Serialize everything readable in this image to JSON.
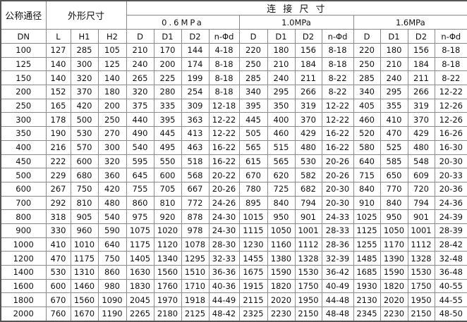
{
  "header": {
    "nominal_diameter": "公称通径",
    "overall_dimensions": "外形尺寸",
    "connection_dimensions": "连 接 尺 寸",
    "pressure_classes": [
      "0.6MPa",
      "1.0MPa",
      "1.6MPa"
    ],
    "columns": [
      "DN",
      "L",
      "H1",
      "H2",
      "D",
      "D1",
      "D2",
      "n-Φd",
      "D",
      "D1",
      "D2",
      "n-Φd",
      "D",
      "D1",
      "D2",
      "n-Φd"
    ]
  },
  "rows": [
    [
      "100",
      "127",
      "285",
      "105",
      "210",
      "170",
      "144",
      "4-18",
      "220",
      "180",
      "156",
      "8-18",
      "220",
      "180",
      "156",
      "8-18"
    ],
    [
      "125",
      "140",
      "300",
      "125",
      "240",
      "200",
      "174",
      "8-18",
      "250",
      "210",
      "184",
      "8-18",
      "250",
      "210",
      "184",
      "8-18"
    ],
    [
      "150",
      "140",
      "320",
      "140",
      "265",
      "225",
      "199",
      "8-18",
      "285",
      "240",
      "211",
      "8-22",
      "285",
      "240",
      "211",
      "8-22"
    ],
    [
      "200",
      "152",
      "370",
      "180",
      "320",
      "280",
      "254",
      "8-18",
      "340",
      "295",
      "266",
      "8-22",
      "340",
      "295",
      "266",
      "12-22"
    ],
    [
      "250",
      "165",
      "420",
      "200",
      "375",
      "335",
      "309",
      "12-18",
      "395",
      "350",
      "319",
      "12-22",
      "405",
      "355",
      "319",
      "12-26"
    ],
    [
      "300",
      "178",
      "500",
      "250",
      "440",
      "395",
      "363",
      "12-22",
      "445",
      "400",
      "370",
      "12-22",
      "460",
      "410",
      "370",
      "12-26"
    ],
    [
      "350",
      "190",
      "530",
      "270",
      "490",
      "445",
      "413",
      "12-22",
      "505",
      "460",
      "429",
      "16-22",
      "520",
      "470",
      "429",
      "16-26"
    ],
    [
      "400",
      "216",
      "570",
      "300",
      "540",
      "495",
      "463",
      "16-22",
      "565",
      "515",
      "480",
      "16-22",
      "580",
      "525",
      "480",
      "16-30"
    ],
    [
      "450",
      "222",
      "600",
      "320",
      "595",
      "550",
      "518",
      "16-22",
      "615",
      "565",
      "530",
      "20-26",
      "640",
      "585",
      "548",
      "20-30"
    ],
    [
      "500",
      "229",
      "680",
      "360",
      "645",
      "600",
      "568",
      "20-22",
      "670",
      "620",
      "582",
      "20-26",
      "715",
      "650",
      "609",
      "20-33"
    ],
    [
      "600",
      "267",
      "750",
      "420",
      "755",
      "705",
      "667",
      "20-26",
      "780",
      "725",
      "682",
      "20-30",
      "840",
      "770",
      "720",
      "20-36"
    ],
    [
      "700",
      "292",
      "810",
      "480",
      "860",
      "810",
      "772",
      "24-26",
      "895",
      "840",
      "794",
      "20-30",
      "910",
      "840",
      "794",
      "24-36"
    ],
    [
      "800",
      "318",
      "905",
      "540",
      "975",
      "920",
      "878",
      "24-30",
      "1015",
      "950",
      "901",
      "24-33",
      "1025",
      "950",
      "901",
      "24-39"
    ],
    [
      "900",
      "330",
      "960",
      "590",
      "1075",
      "1020",
      "978",
      "24-30",
      "1115",
      "1050",
      "1001",
      "28-33",
      "1125",
      "1050",
      "1001",
      "28-39"
    ],
    [
      "1000",
      "410",
      "1010",
      "640",
      "1175",
      "1120",
      "1078",
      "28-30",
      "1230",
      "1160",
      "1112",
      "28-36",
      "1255",
      "1170",
      "1112",
      "28-42"
    ],
    [
      "1200",
      "470",
      "1175",
      "750",
      "1405",
      "1340",
      "1295",
      "32-33",
      "1455",
      "1380",
      "1328",
      "32-39",
      "1485",
      "1390",
      "1328",
      "32-48"
    ],
    [
      "1400",
      "530",
      "1310",
      "860",
      "1630",
      "1560",
      "1510",
      "36-36",
      "1675",
      "1590",
      "1530",
      "36-42",
      "1685",
      "1590",
      "1530",
      "36-48"
    ],
    [
      "1600",
      "600",
      "1460",
      "980",
      "1830",
      "1760",
      "1710",
      "40-36",
      "1915",
      "1820",
      "1750",
      "40-49",
      "1930",
      "1820",
      "1750",
      "40-55"
    ],
    [
      "1800",
      "670",
      "1560",
      "1090",
      "2045",
      "1970",
      "1918",
      "44-49",
      "2115",
      "2020",
      "1950",
      "44-48",
      "2130",
      "2020",
      "1950",
      "44-55"
    ],
    [
      "2000",
      "760",
      "1670",
      "1190",
      "2265",
      "2180",
      "2125",
      "48-42",
      "2325",
      "2230",
      "2150",
      "48-48",
      "2345",
      "2230",
      "2150",
      "48-50"
    ]
  ]
}
